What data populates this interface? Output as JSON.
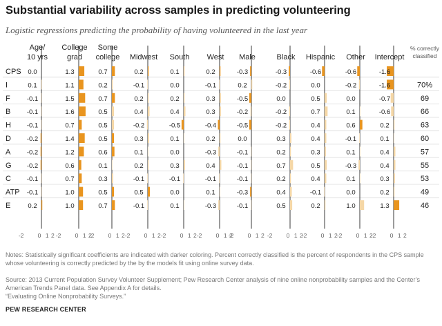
{
  "title": "Substantial variability across samples in predicting volunteering",
  "subtitle": "Logistic regressions predicting the probability of having volunteered in the last year",
  "notes": "Notes: Statistically significant coefficients are indicated with darker coloring. Percent correctly classified is the percent of respondents in the CPS sample whose volunteering is correctly predicted by the by the models fit using online survey data.",
  "source_line1": "Source: 2013 Current Population Survey Volunteer Supplement; Pew Research Center analysis of nine online nonprobability samples and the Center’s American Trends Panel data. See Appendix A for details.",
  "source_line2": "“Evaluating Online Nonprobability Surveys.”",
  "credit": "PEW RESEARCH CENTER",
  "colors": {
    "significant": "#e9951f",
    "not_significant": "#f5d7a6",
    "axis": "#222222",
    "row_line": "#d8d8d8"
  },
  "chart_data": {
    "type": "bar",
    "title": "Substantial variability across samples in predicting volunteering",
    "columns": [
      {
        "key": "age",
        "label": [
          "Age/",
          "10 yrs"
        ]
      },
      {
        "key": "college",
        "label": [
          "College",
          "grad"
        ]
      },
      {
        "key": "somecollege",
        "label": [
          "Some",
          "college"
        ]
      },
      {
        "key": "midwest",
        "label": [
          "Midwest"
        ]
      },
      {
        "key": "south",
        "label": [
          "South"
        ]
      },
      {
        "key": "west",
        "label": [
          "West"
        ]
      },
      {
        "key": "male",
        "label": [
          "Male"
        ]
      },
      {
        "key": "black",
        "label": [
          "Black"
        ]
      },
      {
        "key": "hispanic",
        "label": [
          "Hispanic"
        ]
      },
      {
        "key": "other",
        "label": [
          "Other"
        ]
      },
      {
        "key": "intercept",
        "label": [
          "Intercept"
        ]
      }
    ],
    "pct_header": [
      "% correctly",
      "classified"
    ],
    "axis_range": [
      -2,
      2
    ],
    "axis_tick_labels": [
      "-2",
      "0",
      "1",
      "2"
    ],
    "rows": [
      {
        "label": "CPS",
        "pct": "",
        "values": [
          "0.0",
          "1.3",
          "0.7",
          "0.2",
          "0.1",
          "0.2",
          "-0.3",
          "-0.3",
          "-0.6",
          "-0.6",
          "-1.6"
        ],
        "sig": [
          1,
          1,
          1,
          1,
          1,
          1,
          1,
          1,
          1,
          1,
          1
        ]
      },
      {
        "label": "I",
        "pct": "70%",
        "values": [
          "0.1",
          "1.1",
          "0.2",
          "-0.1",
          "0.0",
          "-0.1",
          "0.2",
          "-0.2",
          "0.0",
          "-0.2",
          "-1.6"
        ],
        "sig": [
          0,
          1,
          0,
          0,
          0,
          0,
          0,
          0,
          0,
          0,
          1
        ]
      },
      {
        "label": "F",
        "pct": "69",
        "values": [
          "-0.1",
          "1.5",
          "0.7",
          "0.2",
          "0.2",
          "0.3",
          "-0.5",
          "0.0",
          "0.5",
          "0.0",
          "-0.7"
        ],
        "sig": [
          0,
          1,
          1,
          0,
          0,
          0,
          1,
          0,
          0,
          0,
          0
        ]
      },
      {
        "label": "B",
        "pct": "66",
        "values": [
          "-0.1",
          "1.6",
          "0.5",
          "0.4",
          "0.4",
          "0.3",
          "-0.2",
          "-0.2",
          "0.7",
          "0.1",
          "-0.6"
        ],
        "sig": [
          0,
          1,
          0,
          0,
          0,
          0,
          0,
          0,
          0,
          0,
          0
        ]
      },
      {
        "label": "H",
        "pct": "63",
        "values": [
          "-0.1",
          "0.7",
          "0.5",
          "-0.2",
          "-0.5",
          "-0.4",
          "-0.5",
          "-0.2",
          "0.4",
          "0.6",
          "0.2"
        ],
        "sig": [
          0,
          1,
          0,
          0,
          1,
          1,
          1,
          0,
          0,
          1,
          0
        ]
      },
      {
        "label": "D",
        "pct": "60",
        "values": [
          "-0.2",
          "1.4",
          "0.5",
          "0.3",
          "0.1",
          "0.2",
          "0.0",
          "0.3",
          "0.4",
          "-0.1",
          "0.1"
        ],
        "sig": [
          1,
          1,
          1,
          0,
          0,
          0,
          0,
          0,
          0,
          0,
          0
        ]
      },
      {
        "label": "A",
        "pct": "57",
        "values": [
          "-0.2",
          "1.2",
          "0.6",
          "0.1",
          "0.0",
          "-0.3",
          "-0.1",
          "0.2",
          "0.3",
          "0.1",
          "0.4"
        ],
        "sig": [
          1,
          1,
          1,
          0,
          0,
          0,
          0,
          0,
          0,
          0,
          0
        ]
      },
      {
        "label": "G",
        "pct": "55",
        "values": [
          "-0.2",
          "0.6",
          "0.1",
          "0.2",
          "0.3",
          "0.4",
          "-0.1",
          "0.7",
          "0.5",
          "-0.3",
          "0.4"
        ],
        "sig": [
          1,
          1,
          0,
          0,
          0,
          0,
          0,
          0,
          0,
          0,
          0
        ]
      },
      {
        "label": "C",
        "pct": "53",
        "values": [
          "-0.1",
          "0.7",
          "0.3",
          "-0.1",
          "-0.1",
          "-0.1",
          "-0.1",
          "0.2",
          "0.4",
          "0.1",
          "0.3"
        ],
        "sig": [
          0,
          1,
          0,
          0,
          0,
          0,
          0,
          0,
          0,
          0,
          0
        ]
      },
      {
        "label": "ATP",
        "pct": "49",
        "values": [
          "-0.1",
          "1.0",
          "0.5",
          "0.5",
          "0.0",
          "0.1",
          "-0.3",
          "0.4",
          "-0.1",
          "0.0",
          "0.2"
        ],
        "sig": [
          0,
          1,
          1,
          1,
          0,
          0,
          1,
          0,
          0,
          0,
          0
        ]
      },
      {
        "label": "E",
        "pct": "46",
        "values": [
          "0.2",
          "1.0",
          "0.7",
          "-0.1",
          "0.1",
          "-0.3",
          "-0.1",
          "0.5",
          "0.2",
          "1.0",
          "1.3"
        ],
        "sig": [
          1,
          1,
          1,
          0,
          0,
          0,
          0,
          0,
          0,
          0,
          1
        ]
      }
    ]
  }
}
